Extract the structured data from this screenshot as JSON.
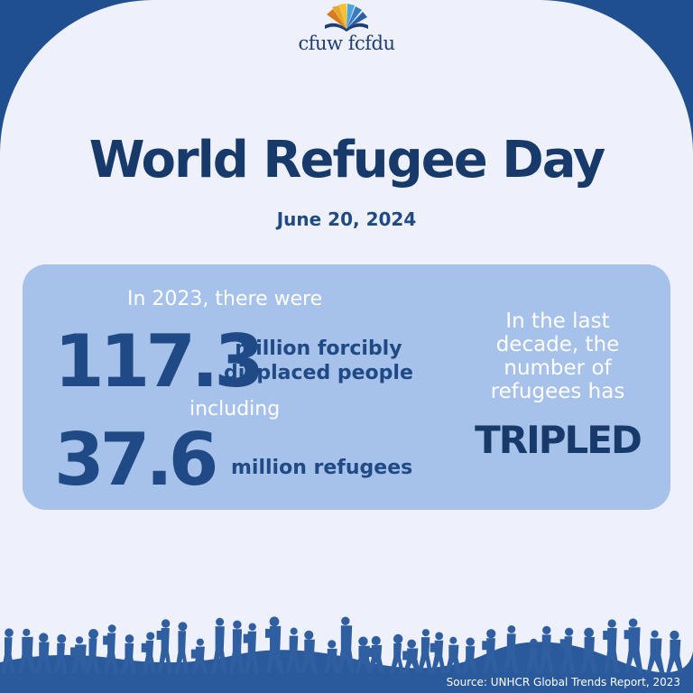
{
  "logo": {
    "text": "cfuw fcfdu",
    "icon": "book-fan-icon"
  },
  "title": "World Refugee Day",
  "date": "June 20, 2024",
  "stats": {
    "intro": "In 2023, there were",
    "displaced_number": "117.3",
    "displaced_label_line1": "million forcibly",
    "displaced_label_line2": "displaced people",
    "connector": "including",
    "refugees_number": "37.6",
    "refugees_label": "million refugees"
  },
  "trend": {
    "line1": "In the last",
    "line2": "decade, the",
    "line3": "number of",
    "line4": "refugees has",
    "emphasis": "TRIPLED"
  },
  "source": "Source: UNHCR Global Trends Report, 2023",
  "colors": {
    "navy": "#173a6a",
    "blue": "#1f4a85",
    "frame": "#1f4f8e",
    "card": "#a6c2ea",
    "panel": "#eef1fb"
  },
  "footer_icon": "crowd-silhouette-icon"
}
